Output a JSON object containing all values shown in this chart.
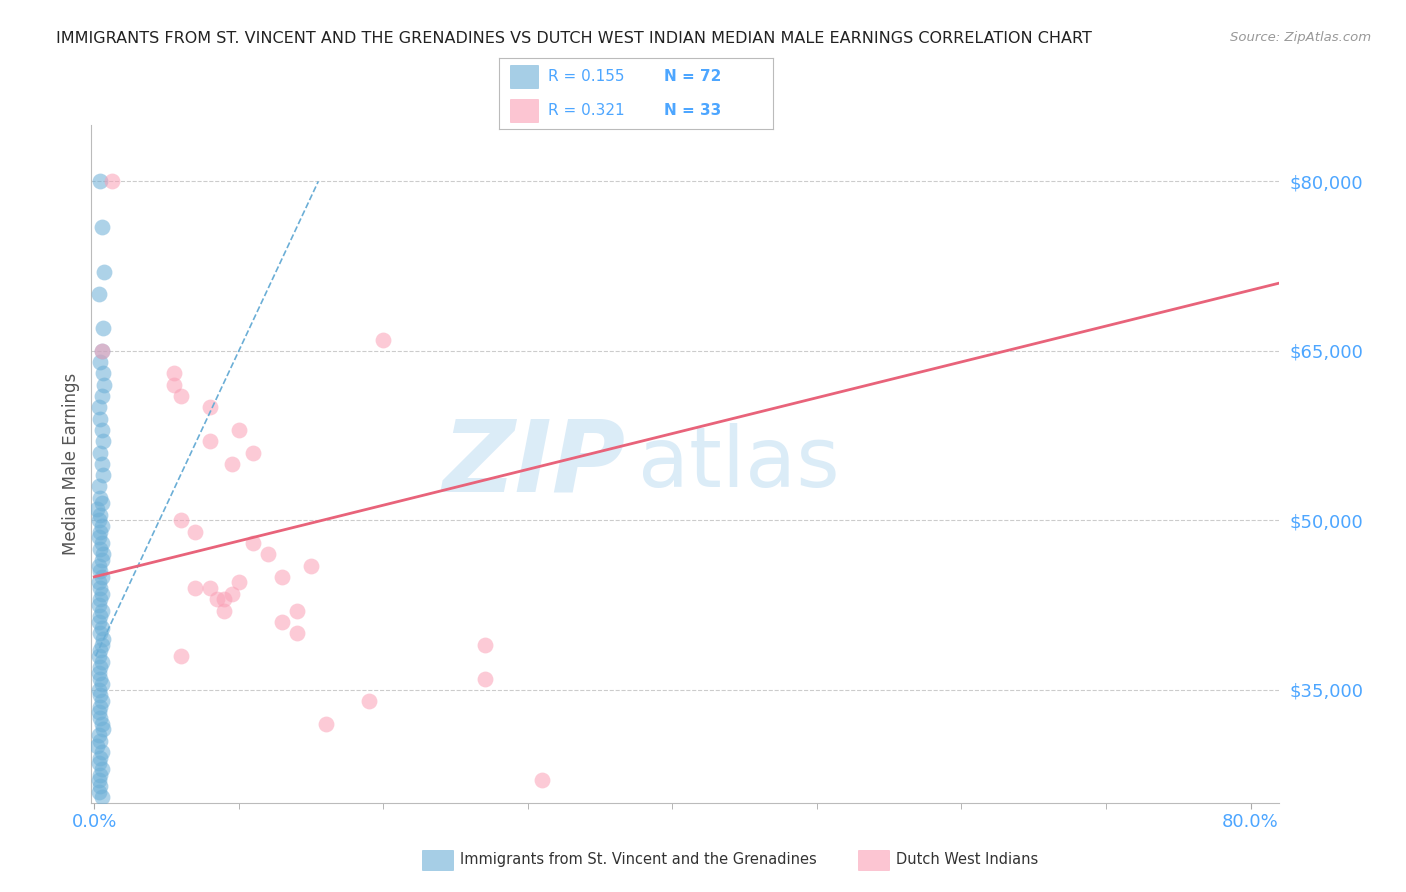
{
  "title": "IMMIGRANTS FROM ST. VINCENT AND THE GRENADINES VS DUTCH WEST INDIAN MEDIAN MALE EARNINGS CORRELATION CHART",
  "source": "Source: ZipAtlas.com",
  "ylabel": "Median Male Earnings",
  "yticks": [
    35000,
    50000,
    65000,
    80000
  ],
  "ytick_labels": [
    "$35,000",
    "$50,000",
    "$65,000",
    "$80,000"
  ],
  "ymin": 25000,
  "ymax": 85000,
  "xmin": -0.002,
  "xmax": 0.82,
  "blue_color": "#6baed6",
  "pink_color": "#fa9fb5",
  "axis_color": "#4da6ff",
  "grid_color": "#cccccc",
  "blue_scatter_x": [
    0.004,
    0.005,
    0.007,
    0.003,
    0.006,
    0.005,
    0.004,
    0.006,
    0.007,
    0.005,
    0.003,
    0.004,
    0.005,
    0.006,
    0.004,
    0.005,
    0.006,
    0.003,
    0.004,
    0.005,
    0.002,
    0.004,
    0.003,
    0.005,
    0.004,
    0.003,
    0.005,
    0.004,
    0.006,
    0.005,
    0.003,
    0.004,
    0.005,
    0.003,
    0.004,
    0.005,
    0.004,
    0.003,
    0.005,
    0.004,
    0.003,
    0.005,
    0.004,
    0.006,
    0.005,
    0.004,
    0.003,
    0.005,
    0.004,
    0.003,
    0.004,
    0.005,
    0.003,
    0.004,
    0.005,
    0.004,
    0.003,
    0.004,
    0.005,
    0.006,
    0.003,
    0.004,
    0.002,
    0.005,
    0.004,
    0.003,
    0.005,
    0.004,
    0.003,
    0.004,
    0.003,
    0.005
  ],
  "blue_scatter_y": [
    80000,
    76000,
    72000,
    70000,
    67000,
    65000,
    64000,
    63000,
    62000,
    61000,
    60000,
    59000,
    58000,
    57000,
    56000,
    55000,
    54000,
    53000,
    52000,
    51500,
    51000,
    50500,
    50000,
    49500,
    49000,
    48500,
    48000,
    47500,
    47000,
    46500,
    46000,
    45500,
    45000,
    44500,
    44000,
    43500,
    43000,
    42500,
    42000,
    41500,
    41000,
    40500,
    40000,
    39500,
    39000,
    38500,
    38000,
    37500,
    37000,
    36500,
    36000,
    35500,
    35000,
    34500,
    34000,
    33500,
    33000,
    32500,
    32000,
    31500,
    31000,
    30500,
    30000,
    29500,
    29000,
    28500,
    28000,
    27500,
    27000,
    26500,
    26000,
    25500
  ],
  "blue_trend_x0": 0.001,
  "blue_trend_x1": 0.155,
  "blue_trend_y0": 38000,
  "blue_trend_y1": 80000,
  "pink_scatter_x": [
    0.005,
    0.012,
    0.055,
    0.055,
    0.06,
    0.08,
    0.08,
    0.095,
    0.1,
    0.11,
    0.06,
    0.07,
    0.11,
    0.12,
    0.07,
    0.09,
    0.15,
    0.13,
    0.09,
    0.095,
    0.1,
    0.13,
    0.14,
    0.2,
    0.06,
    0.08,
    0.085,
    0.14,
    0.27,
    0.27,
    0.16,
    0.19,
    0.31
  ],
  "pink_scatter_y": [
    65000,
    80000,
    63000,
    62000,
    61000,
    60000,
    57000,
    55000,
    58000,
    56000,
    50000,
    49000,
    48000,
    47000,
    44000,
    43000,
    46000,
    45000,
    42000,
    43500,
    44500,
    41000,
    40000,
    66000,
    38000,
    44000,
    43000,
    42000,
    39000,
    36000,
    32000,
    34000,
    27000
  ],
  "pink_trend_x0": 0.0,
  "pink_trend_x1": 0.82,
  "pink_trend_y0": 45000,
  "pink_trend_y1": 71000
}
